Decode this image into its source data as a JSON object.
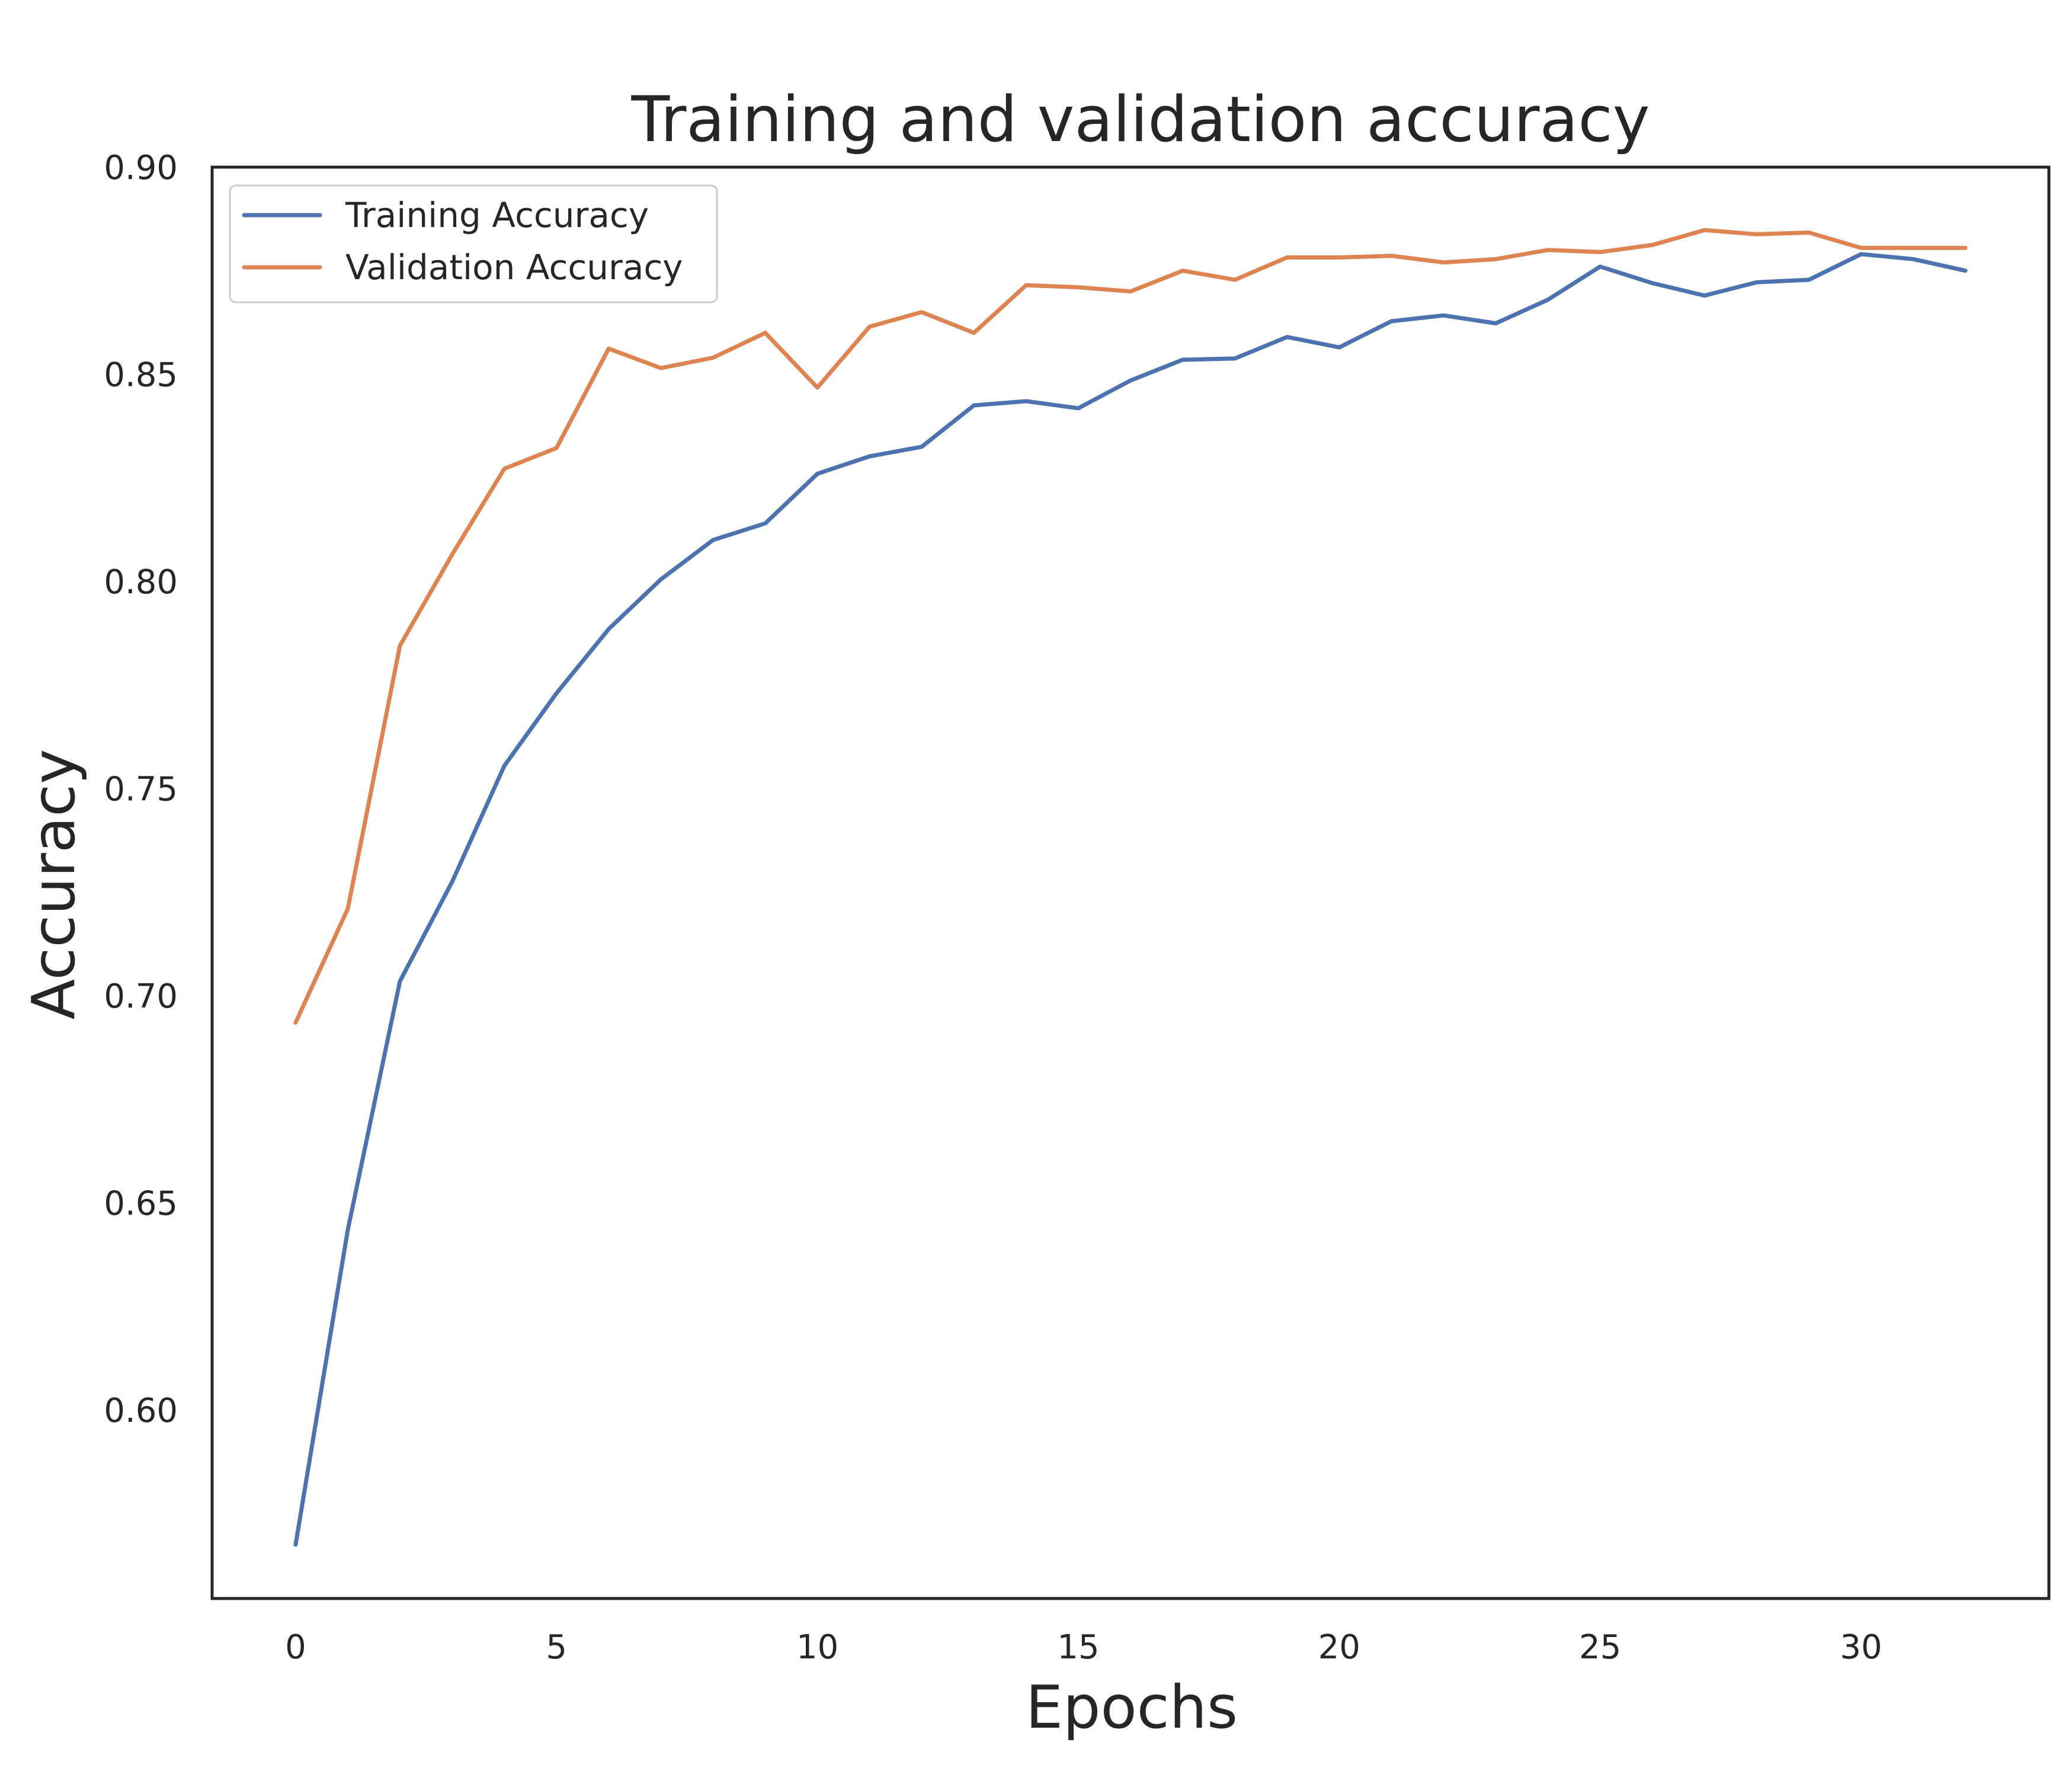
{
  "chart_data": {
    "type": "line",
    "title": "Training and validation accuracy",
    "xlabel": "Epochs",
    "ylabel": "Accuracy",
    "xlim": [
      -1.6,
      33.6
    ],
    "ylim": [
      0.5545,
      0.9
    ],
    "xticks": [
      0,
      5,
      10,
      15,
      20,
      25,
      30
    ],
    "xtick_labels": [
      "0",
      "5",
      "10",
      "15",
      "20",
      "25",
      "30"
    ],
    "yticks": [
      0.6,
      0.65,
      0.7,
      0.75,
      0.8,
      0.85,
      0.9
    ],
    "ytick_labels": [
      "0.60",
      "0.65",
      "0.70",
      "0.75",
      "0.80",
      "0.85",
      "0.90"
    ],
    "grid": false,
    "legend_position": "top-left",
    "x": [
      0,
      1,
      2,
      3,
      4,
      5,
      6,
      7,
      8,
      9,
      10,
      11,
      12,
      13,
      14,
      15,
      16,
      17,
      18,
      19,
      20,
      21,
      22,
      23,
      24,
      25,
      26,
      27,
      28,
      29,
      30,
      31,
      32
    ],
    "series": [
      {
        "name": "Training Accuracy",
        "color": "#4c72b0",
        "values": [
          0.5675,
          0.6435,
          0.7035,
          0.7275,
          0.7555,
          0.773,
          0.7885,
          0.8005,
          0.81,
          0.814,
          0.826,
          0.8302,
          0.8325,
          0.8425,
          0.8435,
          0.8418,
          0.8485,
          0.8535,
          0.8538,
          0.859,
          0.8565,
          0.8628,
          0.8642,
          0.8623,
          0.868,
          0.876,
          0.872,
          0.869,
          0.8722,
          0.8728,
          0.879,
          0.8778,
          0.875
        ]
      },
      {
        "name": "Validation Accuracy",
        "color": "#dd8452",
        "values": [
          0.6935,
          0.721,
          0.7845,
          0.8065,
          0.8272,
          0.8322,
          0.8562,
          0.8515,
          0.854,
          0.86,
          0.8468,
          0.8615,
          0.865,
          0.86,
          0.8715,
          0.871,
          0.87,
          0.875,
          0.8728,
          0.8782,
          0.8782,
          0.8786,
          0.877,
          0.8778,
          0.88,
          0.8795,
          0.8812,
          0.8848,
          0.8838,
          0.8842,
          0.8805,
          0.8805,
          0.8805
        ]
      }
    ]
  }
}
